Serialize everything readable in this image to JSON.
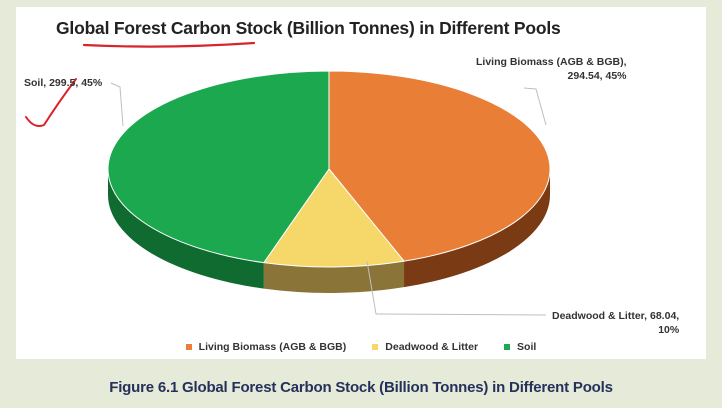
{
  "chart_data": {
    "type": "pie",
    "title": "Global Forest Carbon Stock (Billion Tonnes) in Different Pools",
    "slices": [
      {
        "name": "Living Biomass (AGB & BGB)",
        "value": 294.54,
        "percent": "45%",
        "color": "#e97e36",
        "side_color": "#7a3a14",
        "label_line1": "Living Biomass (AGB & BGB),",
        "label_line2": "294.54, 45%"
      },
      {
        "name": "Deadwood & Litter",
        "value": 68.04,
        "percent": "10%",
        "color": "#f6d76a",
        "side_color": "#8a7438",
        "label_line1": "Deadwood & Litter, 68.04,",
        "label_line2": "10%"
      },
      {
        "name": "Soil",
        "value": 299.5,
        "percent": "45%",
        "color": "#1ca84e",
        "side_color": "#0f6b30",
        "label_line1": "Soil, 299.5, 45%",
        "label_line2": ""
      }
    ],
    "legend_position": "bottom"
  },
  "caption": "Figure 6.1 Global Forest Carbon Stock (Billion Tonnes) in Different Pools"
}
